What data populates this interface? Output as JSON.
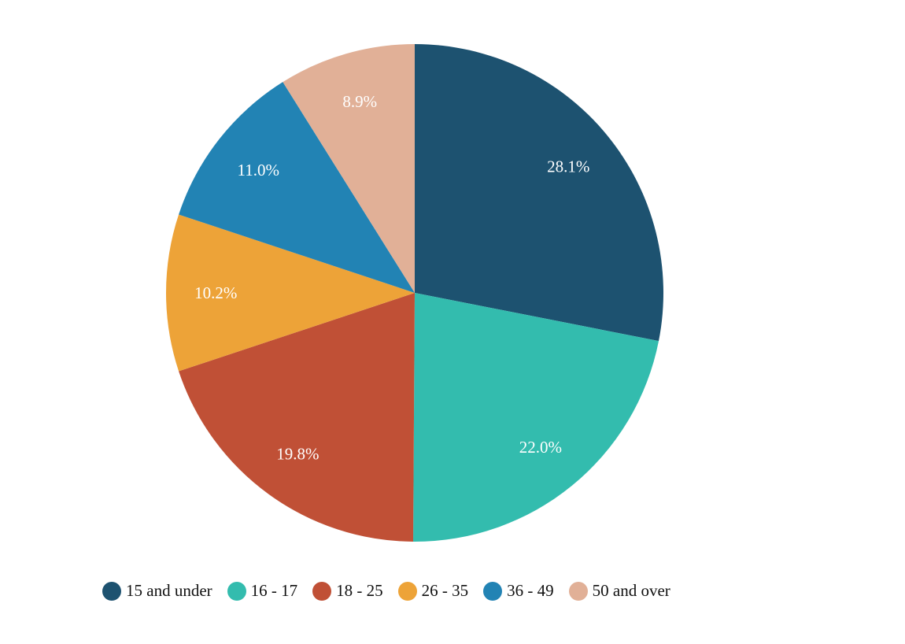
{
  "chart_data": {
    "type": "pie",
    "start_angle": "top",
    "direction": "clockwise",
    "categories": [
      "15 and under",
      "16 - 17",
      "18 - 25",
      "26 - 35",
      "36 - 49",
      "50 and over"
    ],
    "values": [
      28.1,
      22.0,
      19.8,
      10.2,
      11.0,
      8.9
    ],
    "labels": [
      "28.1%",
      "22.0%",
      "19.8%",
      "10.2%",
      "11.0%",
      "8.9%"
    ],
    "colors": [
      "#1d5270",
      "#33bcae",
      "#c05036",
      "#eda338",
      "#2283b4",
      "#e1b097"
    ],
    "legend_position": "bottom-left"
  }
}
